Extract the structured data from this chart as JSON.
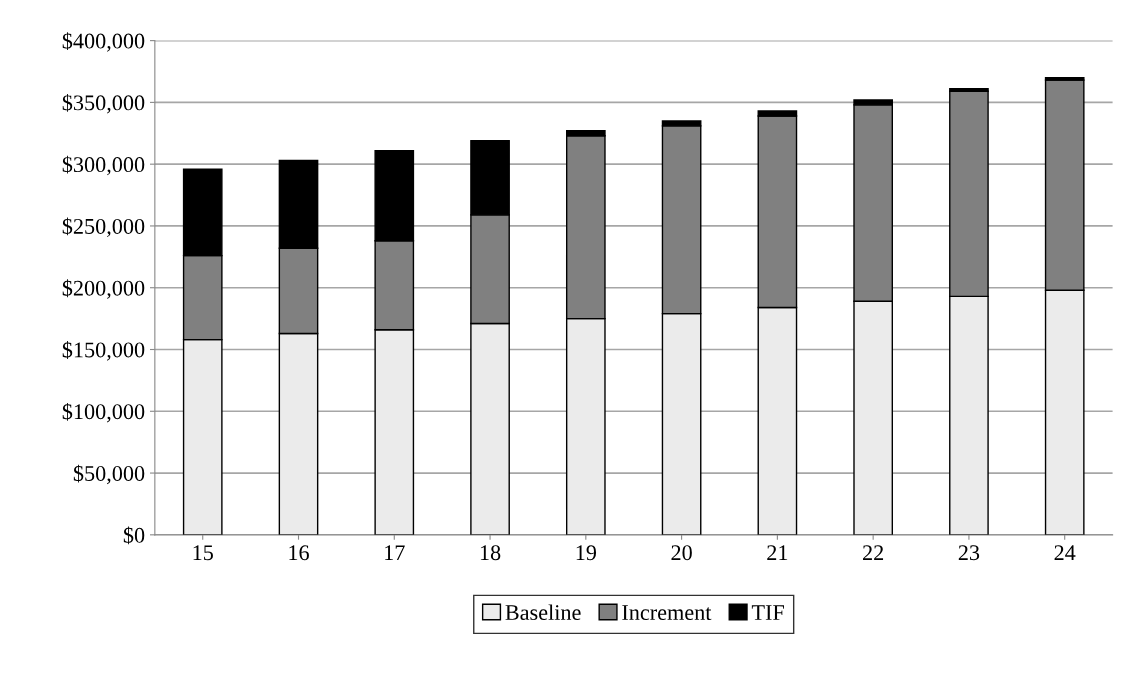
{
  "chart_data": {
    "type": "bar",
    "stacked": true,
    "categories": [
      "15",
      "16",
      "17",
      "18",
      "19",
      "20",
      "21",
      "22",
      "23",
      "24"
    ],
    "series": [
      {
        "name": "Baseline",
        "color": "#ebebeb",
        "values": [
          158000,
          163000,
          166000,
          171000,
          175000,
          179000,
          184000,
          189000,
          193000,
          198000
        ]
      },
      {
        "name": "Increment",
        "color": "#808080",
        "values": [
          68000,
          69000,
          72000,
          88000,
          148000,
          152000,
          155000,
          159000,
          166000,
          170000
        ]
      },
      {
        "name": "TIF",
        "color": "#000000",
        "values": [
          70000,
          71000,
          73000,
          60000,
          4000,
          4000,
          4000,
          4000,
          2000,
          2000
        ]
      }
    ],
    "ylim": [
      0,
      400000
    ],
    "yticks": [
      {
        "value": 0,
        "label": "$0"
      },
      {
        "value": 50000,
        "label": "$50,000"
      },
      {
        "value": 100000,
        "label": "$100,000"
      },
      {
        "value": 150000,
        "label": "$150,000"
      },
      {
        "value": 200000,
        "label": "$200,000"
      },
      {
        "value": 250000,
        "label": "$250,000"
      },
      {
        "value": 300000,
        "label": "$300,000"
      },
      {
        "value": 350000,
        "label": "$350,000"
      },
      {
        "value": 400000,
        "label": "$400,000"
      }
    ],
    "grid": "y",
    "legend": "bottom"
  }
}
